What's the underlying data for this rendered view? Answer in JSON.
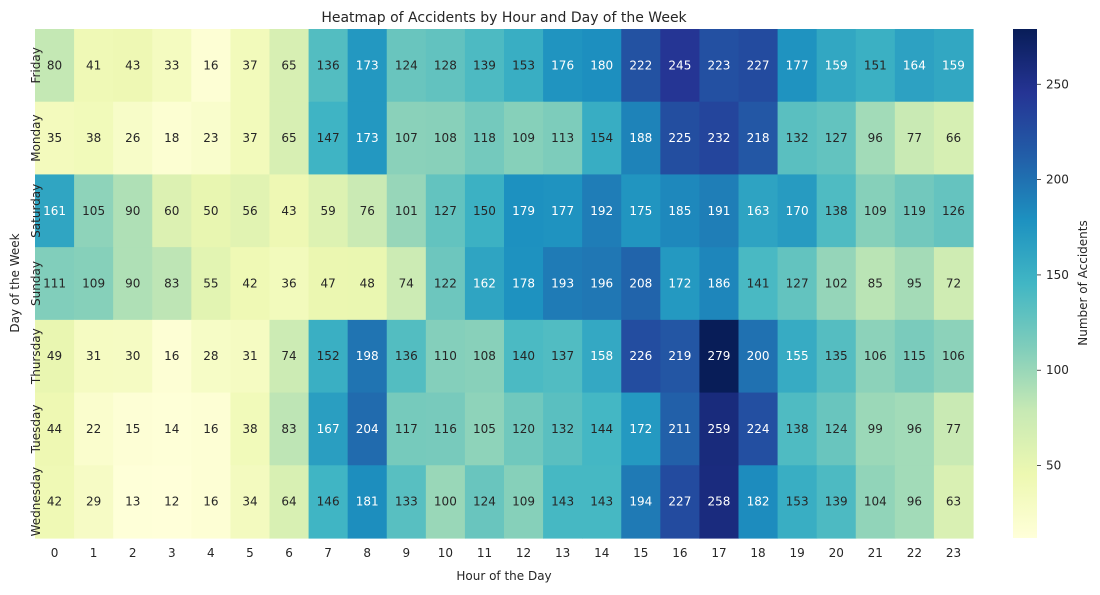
{
  "chart_data": {
    "type": "heatmap",
    "title": "Heatmap of Accidents by Hour and Day of the Week",
    "xlabel": "Hour of the Day",
    "ylabel": "Day of the Week",
    "x": [
      "0",
      "1",
      "2",
      "3",
      "4",
      "5",
      "6",
      "7",
      "8",
      "9",
      "10",
      "11",
      "12",
      "13",
      "14",
      "15",
      "16",
      "17",
      "18",
      "19",
      "20",
      "21",
      "22",
      "23"
    ],
    "y": [
      "Friday",
      "Monday",
      "Saturday",
      "Sunday",
      "Thursday",
      "Tuesday",
      "Wednesday"
    ],
    "values": [
      [
        80,
        41,
        43,
        33,
        16,
        37,
        65,
        136,
        173,
        124,
        128,
        139,
        153,
        176,
        180,
        222,
        245,
        223,
        227,
        177,
        159,
        151,
        164,
        159
      ],
      [
        35,
        38,
        26,
        18,
        23,
        37,
        65,
        147,
        173,
        107,
        108,
        118,
        109,
        113,
        154,
        188,
        225,
        232,
        218,
        132,
        127,
        96,
        77,
        66
      ],
      [
        161,
        105,
        90,
        60,
        50,
        56,
        43,
        59,
        76,
        101,
        127,
        150,
        179,
        177,
        192,
        175,
        185,
        191,
        163,
        170,
        138,
        109,
        119,
        126
      ],
      [
        111,
        109,
        90,
        83,
        55,
        42,
        36,
        47,
        48,
        74,
        122,
        162,
        178,
        193,
        196,
        208,
        172,
        186,
        141,
        127,
        102,
        85,
        95,
        72
      ],
      [
        49,
        31,
        30,
        16,
        28,
        31,
        74,
        152,
        198,
        136,
        110,
        108,
        140,
        137,
        158,
        226,
        219,
        279,
        200,
        155,
        135,
        106,
        115,
        106
      ],
      [
        44,
        22,
        15,
        14,
        16,
        38,
        83,
        167,
        204,
        117,
        116,
        105,
        120,
        132,
        144,
        172,
        211,
        259,
        224,
        138,
        124,
        99,
        96,
        77
      ],
      [
        42,
        29,
        13,
        12,
        16,
        34,
        64,
        146,
        181,
        133,
        100,
        124,
        109,
        143,
        143,
        194,
        227,
        258,
        182,
        153,
        139,
        104,
        96,
        63
      ]
    ],
    "colorbar": {
      "label": "Number of Accidents",
      "colormap": "YlGnBu",
      "vmin": 12,
      "vmax": 279,
      "ticks": [
        "50",
        "100",
        "150",
        "200",
        "250"
      ]
    },
    "annotations": true,
    "grid": false
  }
}
